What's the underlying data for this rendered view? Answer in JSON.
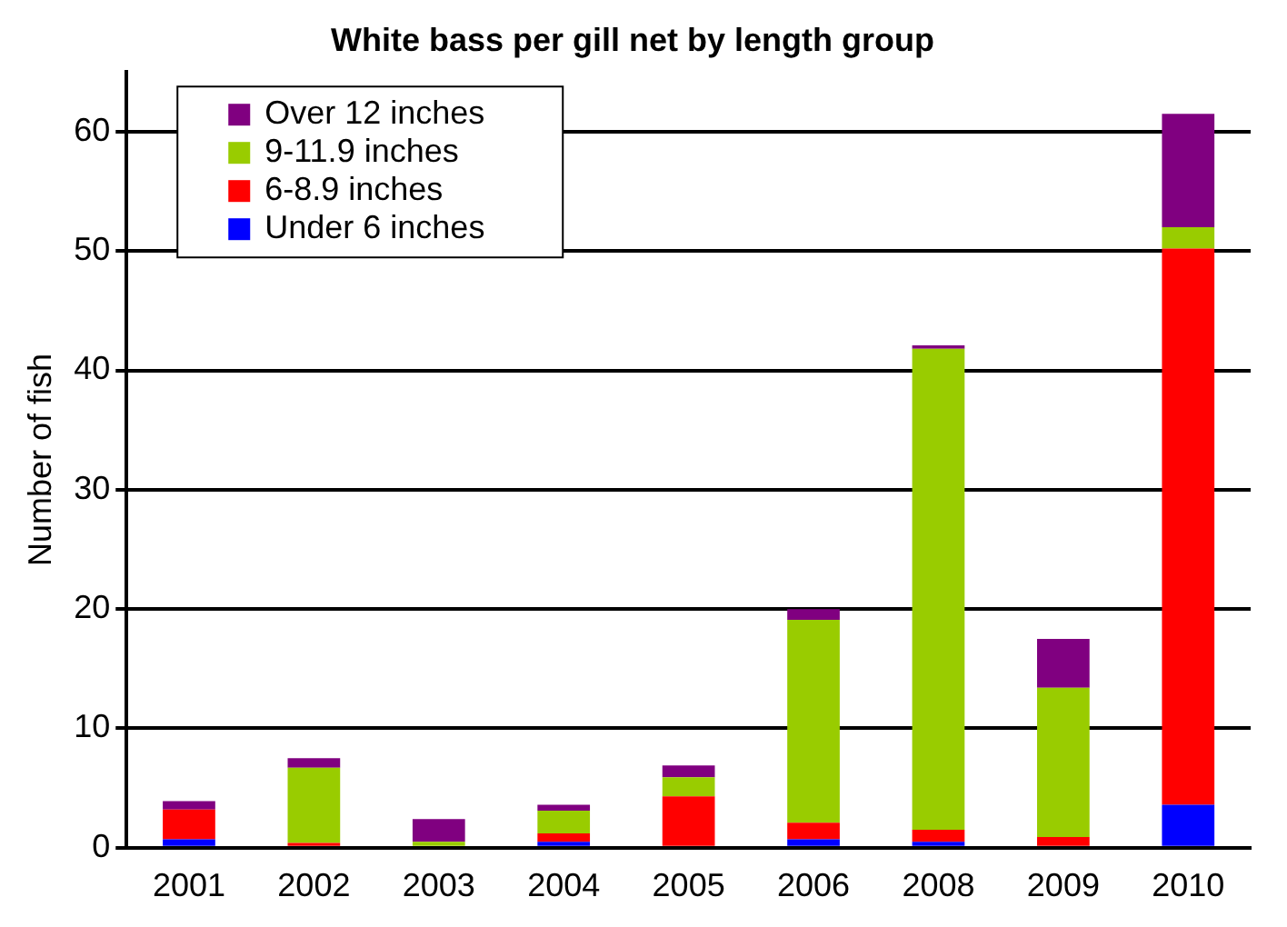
{
  "chart_data": {
    "type": "bar",
    "title": "White bass per gill net by length group",
    "ylabel": "Number of fish",
    "categories": [
      "2001",
      "2002",
      "2003",
      "2004",
      "2005",
      "2006",
      "2008",
      "2009",
      "2010"
    ],
    "stacked": true,
    "series": [
      {
        "name": "Under 6 inches",
        "color": "#0000ff",
        "values": [
          0.7,
          0,
          0,
          0.5,
          0,
          0.7,
          0.5,
          0,
          3.6
        ]
      },
      {
        "name": "6-8.9 inches",
        "color": "#ff0000",
        "values": [
          2.5,
          0.4,
          0,
          0.7,
          4.3,
          1.4,
          1.0,
          0.9,
          46.6
        ]
      },
      {
        "name": "9-11.9 inches",
        "color": "#99cc00",
        "values": [
          0,
          6.3,
          0.5,
          1.9,
          1.6,
          17.0,
          40.3,
          12.5,
          1.8
        ]
      },
      {
        "name": "Over 12 inches",
        "color": "#800080",
        "values": [
          0.7,
          0.8,
          1.9,
          0.5,
          1.0,
          0.9,
          0.3,
          4.1,
          9.5
        ]
      }
    ],
    "ylim": [
      0,
      65
    ],
    "yticks": [
      0,
      10,
      20,
      30,
      40,
      50,
      60
    ],
    "grid": "y",
    "legend": "top left"
  }
}
